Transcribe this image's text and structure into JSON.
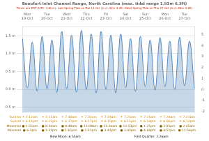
{
  "chart_data": {
    "type": "line",
    "title": "Beaufort Inlet Channel Range, North Carolina (max. tidal range 1.93m 6.3ft)",
    "subtitle": "Times are EDT (UTC -4.0hrs). Last Spring Tide on Tue 11 Oct (h=1.32m 4.4ft). Next Spring Tide on Thu 27 Oct (h=1.46m 4.8ft)",
    "categories": [
      null,
      "Mon\n19-Oct",
      null,
      null,
      null,
      "Tue\n20-Oct",
      null,
      null,
      null,
      "Wed\n21-Oct",
      null,
      null,
      null,
      "Thu\n22-Oct",
      null,
      null,
      null,
      "Fri\n23-Oct",
      null,
      null,
      null,
      "Sat\n24-Oct",
      null,
      null,
      null,
      "Sun\n25-Oct",
      null,
      null,
      null,
      "Mon\n26-Oct",
      null,
      null,
      null,
      "Tue\n27-Oct",
      null,
      null
    ],
    "values": [
      1.42,
      0.05,
      1.32,
      -0.05,
      1.48,
      0.02,
      1.38,
      -0.08,
      1.62,
      0.02,
      1.52,
      -0.08,
      1.65,
      0,
      1.55,
      -0.1,
      1.62,
      0,
      1.52,
      -0.1,
      1.55,
      0.05,
      1.42,
      -0.05,
      1.48,
      0.08,
      1.38,
      -0.02,
      1.45,
      0.08,
      1.35,
      0.0,
      1.46,
      0.1,
      1.35,
      0.02
    ],
    "color": "#5588bb",
    "ylim": [
      -0.65,
      1.75
    ],
    "yticks": [
      {
        "value": -0.5,
        "label": "-0.5 m"
      },
      {
        "value": 0.0,
        "label": "0.0 m"
      },
      {
        "value": 0.5,
        "label": "0.5 m"
      },
      {
        "value": 1.0,
        "label": "1.0 m"
      },
      {
        "value": 1.5,
        "label": "1.5 m"
      }
    ],
    "y2lim": [
      -2.1,
      5.7
    ],
    "y2ticks": [
      -2,
      -1,
      0,
      1,
      2,
      3,
      4,
      5
    ],
    "grid": true,
    "info_rows": [
      {
        "label": "Sunrise",
        "color": "#cc8800",
        "texts": [
          "☀ 7:12am",
          "☀ 7:21am",
          "☀ 7:30am",
          "☀ 7:32am",
          "☀ 7:24am",
          "☀ 7:25am",
          "☀ 7:25am",
          "☀ 7:24am",
          "☀ 7:21am"
        ]
      },
      {
        "label": "Sunset",
        "color": "#cc8800",
        "texts": [
          "☀ 6:13pm",
          "☀ 6:15pm",
          "☀ 6:17pm",
          "☀ 6:17pm",
          "☀ 6:15pm",
          "☀ 6:15pm",
          "☀ 6:14pm",
          "☀ 6:06pm",
          "☀ 6:12pm"
        ]
      },
      {
        "label": "Moonrise",
        "color": "#886600",
        "texts": [
          "● 1:55am",
          "● 8:34am",
          "● 8:40am",
          "● 11:08am",
          "● 11:26am",
          "● 12:53pm",
          "● 1:25pm",
          "● 2:05pm",
          "● 2:45am"
        ]
      },
      {
        "label": "Moonset",
        "color": "#886600",
        "texts": [
          "● 6:3pm",
          "● 1:51pm",
          "● 1:61pm",
          "● 1:51pm",
          "● 3:41pm",
          "● 3:43pm",
          "● 4:44pm",
          "● 4:51pm",
          "● 11:56pm"
        ]
      }
    ],
    "annotations": [
      "New Moon: 6:55am",
      "First Quarter: 2:26am"
    ]
  }
}
